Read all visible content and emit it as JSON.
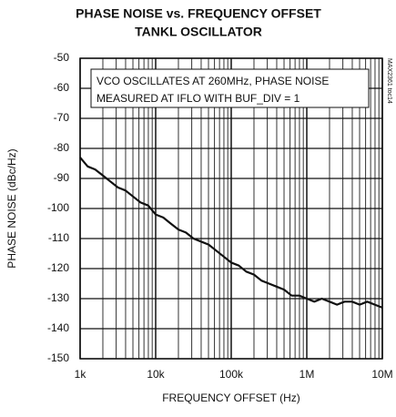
{
  "chart_data": {
    "type": "line",
    "title": "PHASE NOISE vs. FREQUENCY OFFSET",
    "subtitle": "TANKL OSCILLATOR",
    "x_label": "FREQUENCY OFFSET (Hz)",
    "y_label": "PHASE NOISE (dBc/Hz)",
    "annotation": [
      "VCO OSCILLATES AT 260MHz, PHASE NOISE",
      "MEASURED AT IFLO WITH BUF_DIV = 1"
    ],
    "figure_id": "MAX2361 toc14",
    "x_log": true,
    "grid": true,
    "color": "#111111",
    "xlim": [
      1000,
      10000000
    ],
    "xticks": [
      {
        "value": 1000,
        "label": "1k"
      },
      {
        "value": 10000,
        "label": "10k"
      },
      {
        "value": 100000,
        "label": "100k"
      },
      {
        "value": 1000000,
        "label": "1M"
      },
      {
        "value": 10000000,
        "label": "10M"
      }
    ],
    "ylim": [
      -150,
      -50
    ],
    "yticks": [
      -150,
      -140,
      -130,
      -120,
      -110,
      -100,
      -90,
      -80,
      -70,
      -60,
      -50
    ],
    "x": [
      1000,
      1260,
      1580,
      2000,
      2510,
      3160,
      3980,
      5010,
      6310,
      7940,
      10000,
      12600,
      15800,
      20000,
      25100,
      31600,
      39800,
      50100,
      63100,
      79400,
      100000,
      126000,
      158000,
      200000,
      251000,
      316000,
      398000,
      501000,
      631000,
      794000,
      1000000,
      1260000,
      1580000,
      2000000,
      2510000,
      3160000,
      3980000,
      5010000,
      6310000,
      7940000,
      10000000
    ],
    "values": [
      -83,
      -86,
      -87,
      -89,
      -91,
      -93,
      -94,
      -96,
      -98,
      -99,
      -102,
      -103,
      -105,
      -107,
      -108,
      -110,
      -111,
      -112,
      -114,
      -116,
      -118,
      -119,
      -121,
      -122,
      -124,
      -125,
      -126,
      -127,
      -129,
      -129,
      -130,
      -131,
      -130,
      -131,
      -132,
      -131,
      -131,
      -132,
      -131,
      -132,
      -133
    ]
  }
}
